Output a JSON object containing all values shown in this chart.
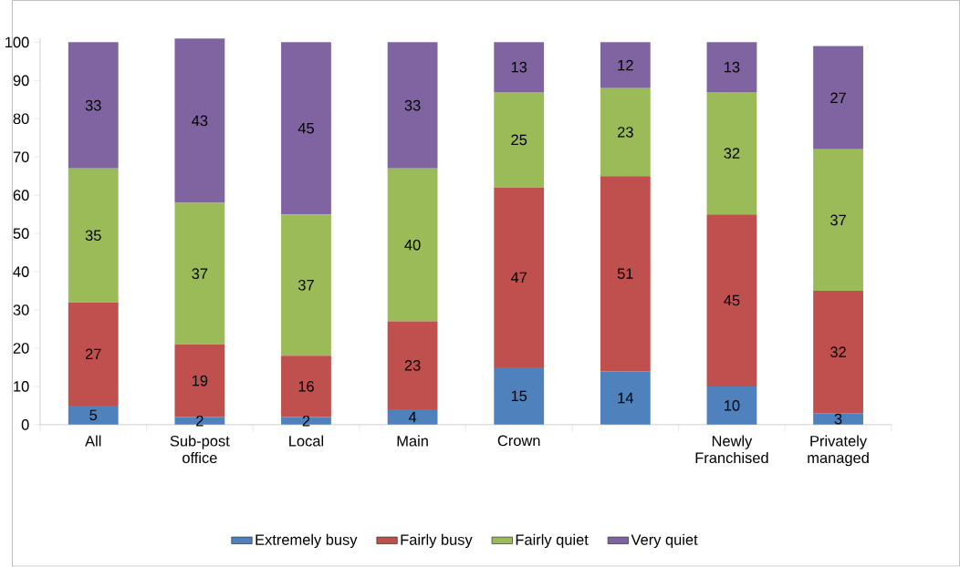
{
  "chart_data": {
    "type": "bar",
    "stacked": true,
    "categories": [
      "All",
      "Sub-post office",
      "Local",
      "Main",
      "Crown",
      null,
      "Newly Franchised",
      "Privately managed"
    ],
    "series": [
      {
        "name": "Extremely busy",
        "color": "#4f81bd",
        "values": [
          5,
          2,
          2,
          4,
          15,
          14,
          10,
          3
        ]
      },
      {
        "name": "Fairly busy",
        "color": "#c0504d",
        "values": [
          27,
          19,
          16,
          23,
          47,
          51,
          45,
          32
        ]
      },
      {
        "name": "Fairly quiet",
        "color": "#9bbb59",
        "values": [
          35,
          37,
          37,
          40,
          25,
          23,
          32,
          37
        ]
      },
      {
        "name": "Very quiet",
        "color": "#8064a2",
        "values": [
          33,
          43,
          45,
          33,
          13,
          12,
          13,
          27
        ]
      }
    ],
    "ylim": [
      0,
      101
    ],
    "yticks": [
      0,
      10,
      20,
      30,
      40,
      50,
      60,
      70,
      80,
      90,
      100
    ],
    "data_labels": true,
    "legend": "bottom",
    "grid": false
  }
}
